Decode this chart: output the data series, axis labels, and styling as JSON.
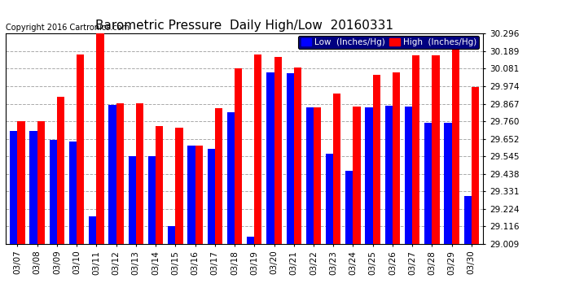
{
  "title": "Barometric Pressure  Daily High/Low  20160331",
  "copyright": "Copyright 2016 Cartronics.com",
  "legend_low": "Low  (Inches/Hg)",
  "legend_high": "High  (Inches/Hg)",
  "dates": [
    "03/07",
    "03/08",
    "03/09",
    "03/10",
    "03/11",
    "03/12",
    "03/13",
    "03/14",
    "03/15",
    "03/16",
    "03/17",
    "03/18",
    "03/19",
    "03/20",
    "03/21",
    "03/22",
    "03/23",
    "03/24",
    "03/25",
    "03/26",
    "03/27",
    "03/28",
    "03/29",
    "03/30"
  ],
  "low": [
    29.7,
    29.7,
    29.645,
    29.635,
    29.18,
    29.86,
    29.545,
    29.545,
    29.12,
    29.61,
    29.59,
    29.815,
    29.055,
    30.06,
    30.055,
    29.845,
    29.56,
    29.455,
    29.845,
    29.855,
    29.85,
    29.75,
    29.75,
    29.3
  ],
  "high": [
    29.76,
    29.76,
    29.91,
    30.17,
    30.296,
    29.87,
    29.87,
    29.73,
    29.72,
    29.61,
    29.84,
    30.085,
    30.17,
    30.155,
    30.09,
    29.845,
    29.93,
    29.85,
    30.045,
    30.06,
    30.165,
    30.165,
    30.276,
    29.97
  ],
  "ylim_min": 29.009,
  "ylim_max": 30.296,
  "yticks": [
    29.009,
    29.116,
    29.224,
    29.331,
    29.438,
    29.545,
    29.652,
    29.76,
    29.867,
    29.974,
    30.081,
    30.189,
    30.296
  ],
  "bar_width": 0.38,
  "low_color": "#0000ff",
  "high_color": "#ff0000",
  "bg_color": "#ffffff",
  "plot_bg_color": "#ffffff",
  "grid_color": "#aaaaaa",
  "title_fontsize": 11,
  "tick_fontsize": 7.5,
  "legend_fontsize": 7.5,
  "copyright_fontsize": 7
}
